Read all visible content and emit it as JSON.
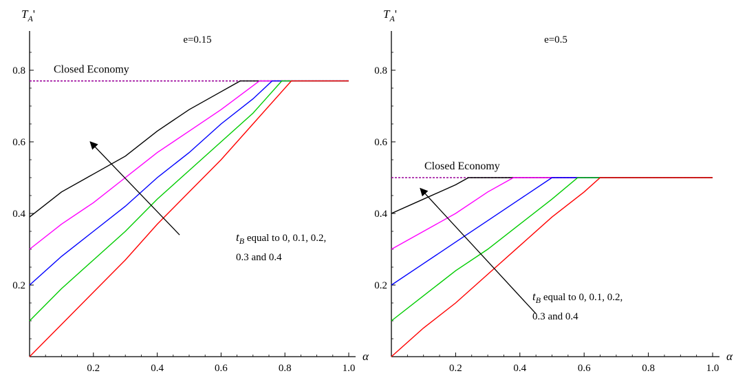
{
  "chart_data": [
    {
      "type": "line",
      "title": "e=0.15",
      "xlabel": "α",
      "ylabel": "T_A'",
      "xlim": [
        0,
        1.0
      ],
      "ylim": [
        0,
        0.9
      ],
      "x_ticks": [
        0.2,
        0.4,
        0.6,
        0.8,
        1.0
      ],
      "x_tick_labels": [
        "0.2",
        "0.4",
        "0.6",
        "0.8",
        "1.0"
      ],
      "y_ticks": [
        0.2,
        0.4,
        0.6,
        0.8
      ],
      "y_tick_labels": [
        "0.2",
        "0.4",
        "0.6",
        "0.8"
      ],
      "grid": false,
      "closed_economy": {
        "label": "Closed Economy",
        "value": 0.77,
        "color": "#990099"
      },
      "annotation": {
        "var": "t",
        "sub": "B",
        "line1": " equal to 0, 0.1, 0.2,",
        "line2": "0.3 and 0.4",
        "arrow_from": [
          0.47,
          0.34
        ],
        "arrow_to": [
          0.19,
          0.6
        ]
      },
      "series": [
        {
          "color": "#000000",
          "points": [
            [
              0,
              0.39
            ],
            [
              0.1,
              0.46
            ],
            [
              0.2,
              0.51
            ],
            [
              0.3,
              0.56
            ],
            [
              0.4,
              0.63
            ],
            [
              0.5,
              0.69
            ],
            [
              0.6,
              0.74
            ],
            [
              0.66,
              0.77
            ],
            [
              1.0,
              0.77
            ]
          ]
        },
        {
          "color": "#ff00ff",
          "points": [
            [
              0,
              0.3
            ],
            [
              0.1,
              0.37
            ],
            [
              0.2,
              0.43
            ],
            [
              0.3,
              0.5
            ],
            [
              0.4,
              0.57
            ],
            [
              0.5,
              0.63
            ],
            [
              0.6,
              0.69
            ],
            [
              0.72,
              0.77
            ],
            [
              1.0,
              0.77
            ]
          ]
        },
        {
          "color": "#0000ff",
          "points": [
            [
              0,
              0.2
            ],
            [
              0.1,
              0.28
            ],
            [
              0.2,
              0.35
            ],
            [
              0.3,
              0.42
            ],
            [
              0.4,
              0.5
            ],
            [
              0.5,
              0.57
            ],
            [
              0.6,
              0.65
            ],
            [
              0.7,
              0.72
            ],
            [
              0.76,
              0.77
            ],
            [
              1.0,
              0.77
            ]
          ]
        },
        {
          "color": "#00cc00",
          "points": [
            [
              0,
              0.1
            ],
            [
              0.1,
              0.19
            ],
            [
              0.2,
              0.27
            ],
            [
              0.3,
              0.35
            ],
            [
              0.4,
              0.44
            ],
            [
              0.5,
              0.52
            ],
            [
              0.6,
              0.6
            ],
            [
              0.7,
              0.68
            ],
            [
              0.79,
              0.77
            ],
            [
              1.0,
              0.77
            ]
          ]
        },
        {
          "color": "#ff0000",
          "points": [
            [
              0,
              0.0
            ],
            [
              0.1,
              0.09
            ],
            [
              0.2,
              0.18
            ],
            [
              0.3,
              0.27
            ],
            [
              0.4,
              0.37
            ],
            [
              0.5,
              0.46
            ],
            [
              0.6,
              0.55
            ],
            [
              0.7,
              0.65
            ],
            [
              0.82,
              0.77
            ],
            [
              1.0,
              0.77
            ]
          ]
        }
      ]
    },
    {
      "type": "line",
      "title": "e=0.5",
      "xlabel": "α",
      "ylabel": "T_A'",
      "xlim": [
        0,
        1.0
      ],
      "ylim": [
        0,
        0.9
      ],
      "x_ticks": [
        0.2,
        0.4,
        0.6,
        0.8,
        1.0
      ],
      "x_tick_labels": [
        "0.2",
        "0.4",
        "0.6",
        "0.8",
        "1.0"
      ],
      "y_ticks": [
        0.2,
        0.4,
        0.6,
        0.8
      ],
      "y_tick_labels": [
        "0.2",
        "0.4",
        "0.6",
        "0.8"
      ],
      "grid": false,
      "closed_economy": {
        "label": "Closed Economy",
        "value": 0.5,
        "color": "#990099"
      },
      "annotation": {
        "var": "t",
        "sub": "B",
        "line1": " equal to 0, 0.1, 0.2,",
        "line2": "0.3 and 0.4",
        "arrow_from": [
          0.45,
          0.12
        ],
        "arrow_to": [
          0.09,
          0.47
        ]
      },
      "series": [
        {
          "color": "#000000",
          "points": [
            [
              0,
              0.4
            ],
            [
              0.1,
              0.44
            ],
            [
              0.2,
              0.48
            ],
            [
              0.24,
              0.5
            ],
            [
              1.0,
              0.5
            ]
          ]
        },
        {
          "color": "#ff00ff",
          "points": [
            [
              0,
              0.3
            ],
            [
              0.1,
              0.35
            ],
            [
              0.2,
              0.4
            ],
            [
              0.3,
              0.46
            ],
            [
              0.38,
              0.5
            ],
            [
              1.0,
              0.5
            ]
          ]
        },
        {
          "color": "#0000ff",
          "points": [
            [
              0,
              0.2
            ],
            [
              0.1,
              0.26
            ],
            [
              0.2,
              0.32
            ],
            [
              0.3,
              0.38
            ],
            [
              0.4,
              0.44
            ],
            [
              0.5,
              0.5
            ],
            [
              1.0,
              0.5
            ]
          ]
        },
        {
          "color": "#00cc00",
          "points": [
            [
              0,
              0.1
            ],
            [
              0.1,
              0.17
            ],
            [
              0.2,
              0.24
            ],
            [
              0.3,
              0.3
            ],
            [
              0.4,
              0.37
            ],
            [
              0.5,
              0.44
            ],
            [
              0.58,
              0.5
            ],
            [
              1.0,
              0.5
            ]
          ]
        },
        {
          "color": "#ff0000",
          "points": [
            [
              0,
              0.0
            ],
            [
              0.1,
              0.08
            ],
            [
              0.2,
              0.15
            ],
            [
              0.3,
              0.23
            ],
            [
              0.4,
              0.31
            ],
            [
              0.5,
              0.39
            ],
            [
              0.6,
              0.46
            ],
            [
              0.65,
              0.5
            ],
            [
              1.0,
              0.5
            ]
          ]
        }
      ]
    }
  ]
}
